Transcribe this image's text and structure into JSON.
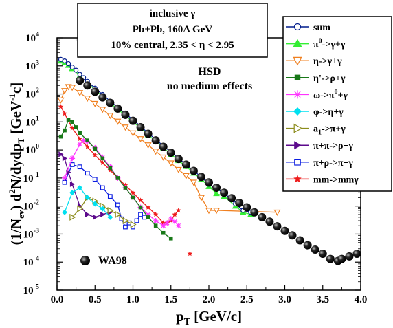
{
  "chart_data": {
    "type": "scatter",
    "title_box": {
      "line1": "inclusive γ",
      "line2": "Pb+Pb,   160A GeV",
      "line3": "10% central,   2.35 < η < 2.95"
    },
    "annotation": {
      "line1": "HSD",
      "line2": "no medium effects"
    },
    "xlabel": "p",
    "xlabel_sub": "T",
    "xlabel_unit": " [GeV/c]",
    "ylabel": {
      "p1": "(1/N",
      "p1_sub": "ev",
      "p2": ") d",
      "p2_sup": "2",
      "p3": "N/dydp",
      "p3_sub": "T",
      "p4": "  [GeV",
      "p4_sup": "-1",
      "p5": "c]"
    },
    "xlim": [
      0,
      4.0
    ],
    "ylim_log10": [
      -5,
      4
    ],
    "log_y": true,
    "x_ticks": [
      "0.0",
      "0.5",
      "1.0",
      "1.5",
      "2.0",
      "2.5",
      "3.0",
      "3.5",
      "4.0"
    ],
    "y_ticks": [
      {
        "base": "10",
        "exp": "-5"
      },
      {
        "base": "10",
        "exp": "-4"
      },
      {
        "base": "10",
        "exp": "-3"
      },
      {
        "base": "10",
        "exp": "-2"
      },
      {
        "base": "10",
        "exp": "-1"
      },
      {
        "base": "10",
        "exp": "0"
      },
      {
        "base": "10",
        "exp": "1"
      },
      {
        "base": "10",
        "exp": "2"
      },
      {
        "base": "10",
        "exp": "3"
      },
      {
        "base": "10",
        "exp": "4"
      }
    ],
    "legend_position": "right-outside",
    "wa98": {
      "name": "WA98",
      "color": "#000000",
      "x": [
        0.3,
        0.4,
        0.5,
        0.6,
        0.7,
        0.8,
        0.9,
        1.0,
        1.1,
        1.2,
        1.3,
        1.4,
        1.5,
        1.6,
        1.7,
        1.8,
        1.9,
        2.0,
        2.1,
        2.2,
        2.3,
        2.4,
        2.5,
        2.6,
        2.7,
        2.8,
        2.9,
        3.0,
        3.1,
        3.2,
        3.3,
        3.4,
        3.5,
        3.6,
        3.7,
        3.75,
        3.85,
        3.95
      ],
      "y": [
        300,
        200,
        120,
        75,
        48,
        30,
        18,
        11,
        6.5,
        3.8,
        2.2,
        1.3,
        0.8,
        0.48,
        0.3,
        0.18,
        0.11,
        0.07,
        0.045,
        0.03,
        0.019,
        0.013,
        0.009,
        0.006,
        0.004,
        0.0028,
        0.0019,
        0.0013,
        0.0009,
        0.0006,
        0.0004,
        0.00028,
        0.0002,
        0.00013,
        0.00011,
        0.00013,
        0.00016,
        0.0002
      ]
    },
    "series": [
      {
        "name": "sum",
        "label_parts": [
          [
            "sum",
            ""
          ]
        ],
        "color": "#001c8c",
        "marker": "open-circle",
        "x": [
          0.05,
          0.1,
          0.15,
          0.2,
          0.25,
          0.3,
          0.35,
          0.4,
          0.5,
          0.6,
          0.7,
          0.8,
          0.9,
          1.0,
          1.1,
          1.2,
          1.3,
          1.4,
          1.5,
          1.6,
          1.7,
          1.8,
          1.9,
          2.0,
          2.1,
          2.2,
          2.35,
          2.45,
          2.55
        ],
        "y": [
          1700,
          1500,
          1200,
          900,
          700,
          500,
          380,
          280,
          160,
          95,
          55,
          33,
          20,
          12,
          7,
          4,
          2.4,
          1.4,
          0.85,
          0.5,
          0.3,
          0.18,
          0.11,
          0.06,
          0.04,
          0.03,
          0.012,
          0.007,
          0.006
        ]
      },
      {
        "name": "pi0",
        "label_parts": [
          [
            "π",
            ""
          ],
          [
            "0",
            "sup"
          ],
          [
            "->γ+γ",
            ""
          ]
        ],
        "color": "#33ee33",
        "marker": "filled-triangle-up",
        "x": [
          0.05,
          0.1,
          0.15,
          0.2,
          0.3,
          0.4,
          0.5,
          0.6,
          0.7,
          0.8,
          0.9,
          1.0,
          1.1,
          1.2,
          1.3,
          1.4,
          1.5,
          1.6,
          1.7,
          1.8,
          1.9,
          2.0,
          2.1,
          2.2,
          2.35,
          2.45,
          2.55
        ],
        "y": [
          1500,
          1300,
          1050,
          800,
          450,
          250,
          140,
          80,
          48,
          28,
          17,
          10,
          6,
          3.5,
          2,
          1.2,
          0.7,
          0.42,
          0.26,
          0.15,
          0.09,
          0.05,
          0.028,
          0.022,
          0.01,
          0.006,
          0.005
        ]
      },
      {
        "name": "eta",
        "label_parts": [
          [
            "η->γ+γ",
            ""
          ]
        ],
        "color": "#f08020",
        "marker": "open-triangle-down",
        "x": [
          0.05,
          0.1,
          0.15,
          0.2,
          0.3,
          0.4,
          0.5,
          0.6,
          0.7,
          0.8,
          0.9,
          1.0,
          1.1,
          1.2,
          1.3,
          1.4,
          1.5,
          1.6,
          1.7,
          1.8,
          1.9,
          2.0,
          2.1,
          2.9
        ],
        "y": [
          60,
          130,
          180,
          170,
          110,
          70,
          45,
          28,
          17,
          10.5,
          6.5,
          4,
          2.5,
          1.5,
          0.9,
          0.55,
          0.34,
          0.2,
          0.12,
          0.07,
          0.02,
          0.007,
          0.007,
          0.006
        ]
      },
      {
        "name": "etaprime",
        "label_parts": [
          [
            "η'->ρ+γ",
            ""
          ]
        ],
        "color": "#187818",
        "marker": "filled-square",
        "x": [
          0.05,
          0.1,
          0.15,
          0.2,
          0.25,
          0.3,
          0.4,
          0.5,
          0.6,
          0.7,
          0.8,
          0.9,
          1.0,
          1.1,
          1.2,
          1.3,
          1.4,
          1.5
        ],
        "y": [
          3,
          5,
          12,
          10,
          6.5,
          4,
          2.2,
          1.1,
          0.5,
          0.23,
          0.1,
          0.045,
          0.02,
          0.009,
          0.004,
          0.002,
          0.0011,
          0.0007
        ]
      },
      {
        "name": "omega",
        "label_parts": [
          [
            "ω->π",
            ""
          ],
          [
            "0",
            "sup"
          ],
          [
            "+γ",
            ""
          ]
        ],
        "color": "#ff33ff",
        "marker": "asterisk",
        "x": [
          0.1,
          0.2,
          0.3,
          0.35,
          0.4,
          0.5,
          0.6,
          0.7,
          0.8,
          0.9,
          1.0,
          1.1,
          1.2,
          1.3,
          1.4,
          1.45,
          1.5,
          1.55,
          1.6
        ],
        "y": [
          0.1,
          0.5,
          1.6,
          2.2,
          2.0,
          1.2,
          0.55,
          0.25,
          0.1,
          0.045,
          0.02,
          0.009,
          0.005,
          0.003,
          0.002,
          0.0025,
          0.0035,
          0.0028,
          0.002
        ]
      },
      {
        "name": "phi",
        "label_parts": [
          [
            "φ->η+γ",
            ""
          ]
        ],
        "color": "#00e0f0",
        "marker": "filled-diamond",
        "x": [
          0.1,
          0.2,
          0.3,
          0.4,
          0.5,
          0.6,
          0.7
        ],
        "y": [
          0.006,
          0.03,
          0.045,
          0.02,
          0.012,
          0.008,
          0.004
        ]
      },
      {
        "name": "a1",
        "label_parts": [
          [
            "a",
            ""
          ],
          [
            "1",
            "sub"
          ],
          [
            "->π+γ",
            ""
          ]
        ],
        "color": "#8c8c1c",
        "marker": "open-triangle-right",
        "x": [
          0.2,
          0.3,
          0.4,
          0.5,
          0.6,
          0.7,
          0.8,
          0.9,
          1.0
        ],
        "y": [
          0.004,
          0.008,
          0.02,
          0.015,
          0.01,
          0.007,
          0.005,
          0.003,
          0.0022
        ]
      },
      {
        "name": "pipi",
        "label_parts": [
          [
            "π+π->ρ+γ",
            ""
          ]
        ],
        "color": "#5c0a8c",
        "marker": "filled-triangle-right",
        "x": [
          0.05,
          0.1,
          0.15,
          0.2,
          0.3,
          0.4,
          0.5,
          0.6,
          0.7
        ],
        "y": [
          0.7,
          0.5,
          0.16,
          0.06,
          0.01,
          0.005,
          0.004,
          0.005,
          0.006
        ]
      },
      {
        "name": "pirho",
        "label_parts": [
          [
            "π+ρ->π+γ",
            ""
          ]
        ],
        "color": "#0a1ce0",
        "marker": "open-square",
        "x": [
          0.1,
          0.2,
          0.3,
          0.4,
          0.5,
          0.6,
          0.7,
          0.8,
          0.85,
          0.9,
          0.95,
          1.0,
          1.05,
          1.1,
          1.15
        ],
        "y": [
          0.07,
          0.3,
          0.25,
          0.15,
          0.09,
          0.045,
          0.022,
          0.011,
          0.0035,
          0.0018,
          0.0025,
          0.0018,
          0.003,
          0.005,
          0.004
        ]
      },
      {
        "name": "mm",
        "label_parts": [
          [
            "mm->mmγ",
            ""
          ]
        ],
        "color": "#ee1c1c",
        "marker": "filled-star",
        "x": [
          0.05,
          0.1,
          0.2,
          0.3,
          0.4,
          0.5,
          0.6,
          0.7,
          0.8,
          0.9,
          1.0,
          1.1,
          1.2,
          1.3,
          1.4,
          1.45,
          1.5,
          1.55,
          1.6
        ],
        "y": [
          35,
          20,
          6,
          2.5,
          1.3,
          0.65,
          0.35,
          0.19,
          0.1,
          0.055,
          0.03,
          0.016,
          0.009,
          0.005,
          0.0025,
          0.0025,
          0.003,
          0.005,
          0.007
        ]
      }
    ],
    "isolated_point": {
      "x": 1.75,
      "y": 0.0002,
      "color": "#ee1c1c"
    }
  }
}
